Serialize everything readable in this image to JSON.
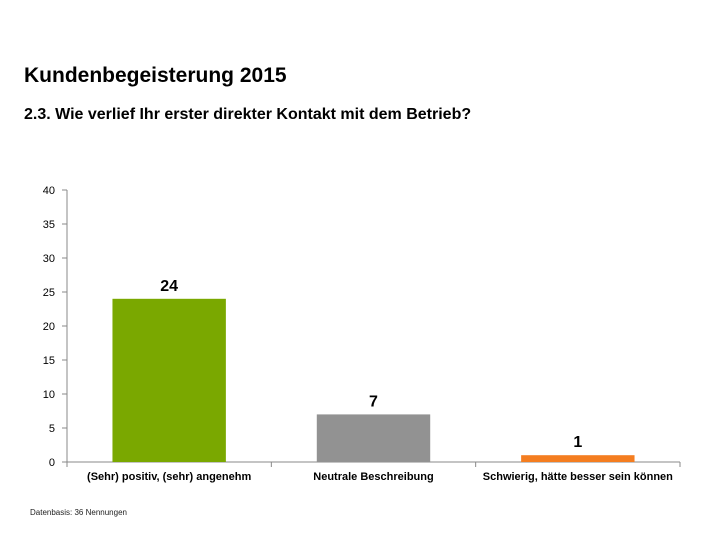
{
  "header": {
    "title": "Kundenbegeisterung 2015",
    "subtitle": "2.3. Wie verlief Ihr erster direkter Kontakt mit dem Betrieb?"
  },
  "footer": {
    "note": "Datenbasis: 36 Nennungen"
  },
  "chart_data": {
    "type": "bar",
    "title": "",
    "xlabel": "",
    "ylabel": "",
    "categories": [
      "(Sehr) positiv, (sehr) angenehm",
      "Neutrale Beschreibung",
      "Schwierig, hätte besser sein können"
    ],
    "values": [
      24,
      7,
      1
    ],
    "data_labels": [
      "24",
      "7",
      "1"
    ],
    "colors": [
      "#7aa800",
      "#929292",
      "#f47d20"
    ],
    "ylim": [
      0,
      40
    ],
    "yticks": [
      0,
      5,
      10,
      15,
      20,
      25,
      30,
      35,
      40
    ],
    "grid": false,
    "legend": "none"
  }
}
